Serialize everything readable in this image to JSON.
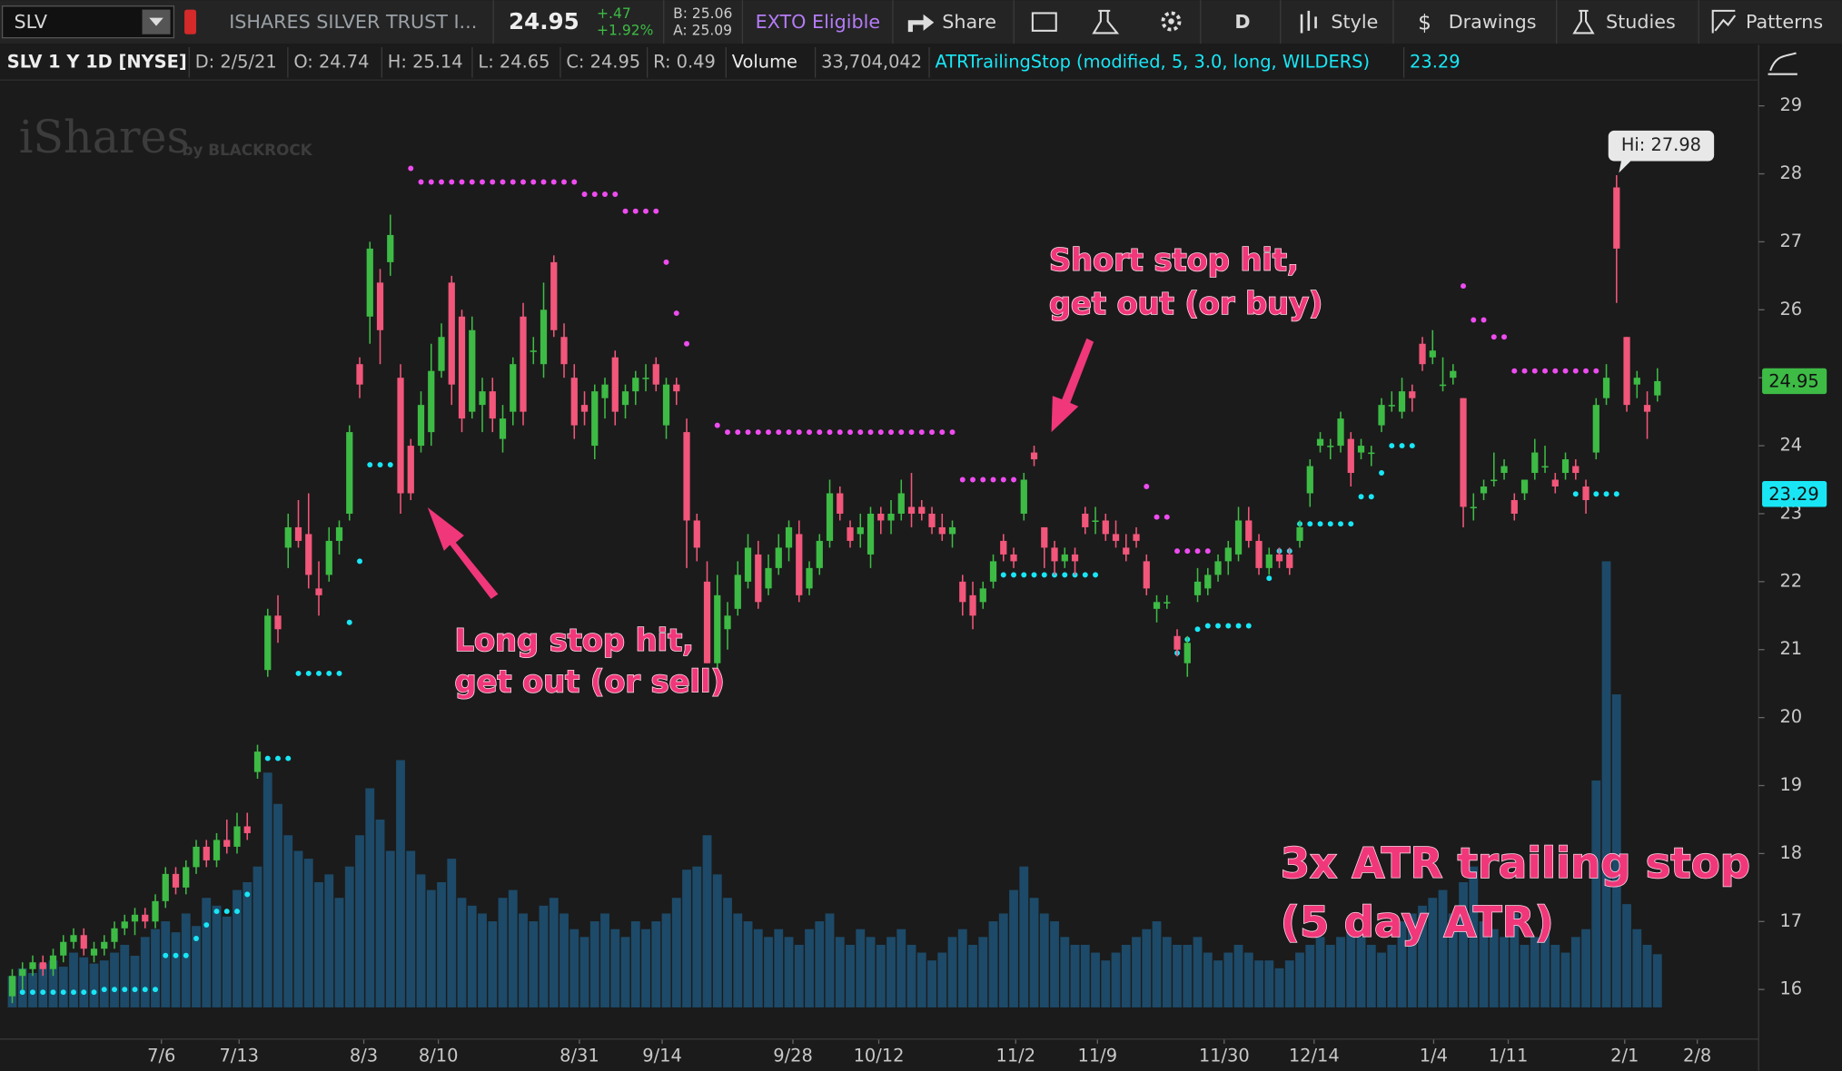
{
  "toolbar": {
    "symbol": "SLV",
    "description": "ISHARES SILVER TRUST I...",
    "last": 24.95,
    "change": "+.47",
    "change_pct": "+1.92%",
    "bid": "B: 25.06",
    "ask": "A: 25.09",
    "exto": "EXTO Eligible",
    "share": "Share",
    "aggregation": "D",
    "style": "Style",
    "drawings": "Drawings",
    "studies": "Studies",
    "patterns": "Patterns"
  },
  "header": {
    "title": "SLV 1 Y 1D [NYSE]",
    "date": "D: 2/5/21",
    "open": "O: 24.74",
    "high": "H: 25.14",
    "low": "L: 24.65",
    "close": "C: 24.95",
    "range": "R: 0.49",
    "volume_label": "Volume",
    "volume": "33,704,042",
    "study": "ATRTrailingStop (modified, 5, 3.0, long, WILDERS)",
    "study_value": "23.29"
  },
  "watermark": [
    "iShares",
    "by BLACKROCK"
  ],
  "chart_data": {
    "type": "candlestick",
    "xlim": [
      -1.2,
      170.9
    ],
    "xticks": [
      {
        "value": 14.6,
        "label": "7/6"
      },
      {
        "value": 22.2,
        "label": "7/13"
      },
      {
        "value": 34.4,
        "label": "8/3"
      },
      {
        "value": 41.7,
        "label": "8/10"
      },
      {
        "value": 55.5,
        "label": "8/31"
      },
      {
        "value": 63.6,
        "label": "9/14"
      },
      {
        "value": 76.4,
        "label": "9/28"
      },
      {
        "value": 84.8,
        "label": "10/12"
      },
      {
        "value": 98.2,
        "label": "11/2"
      },
      {
        "value": 106.2,
        "label": "11/9"
      },
      {
        "value": 118.6,
        "label": "11/30"
      },
      {
        "value": 127.4,
        "label": "12/14"
      },
      {
        "value": 139.1,
        "label": "1/4"
      },
      {
        "value": 146.4,
        "label": "1/11"
      },
      {
        "value": 157.8,
        "label": "2/1"
      },
      {
        "value": 164.9,
        "label": "2/8"
      }
    ],
    "ylim": [
      15.27,
      29.38
    ],
    "yticks": [
      16,
      17,
      18,
      19,
      20,
      21,
      22,
      23,
      24,
      25,
      26,
      27,
      28,
      29
    ],
    "y2lim": [
      0,
      300
    ],
    "up_color": "#3dbb45",
    "down_color": "#f2567a",
    "volume_color": "#1d4a68",
    "long_stop_color": "#19e6f5",
    "short_stop_color": "#ee4cf0",
    "ohlc": [
      [
        15.9,
        16.3,
        15.8,
        16.2
      ],
      [
        16.2,
        16.4,
        16.0,
        16.3
      ],
      [
        16.3,
        16.5,
        16.2,
        16.4
      ],
      [
        16.4,
        16.5,
        16.2,
        16.3
      ],
      [
        16.3,
        16.6,
        16.2,
        16.5
      ],
      [
        16.5,
        16.8,
        16.4,
        16.7
      ],
      [
        16.7,
        16.9,
        16.6,
        16.8
      ],
      [
        16.8,
        16.9,
        16.5,
        16.6
      ],
      [
        16.5,
        16.7,
        16.4,
        16.6
      ],
      [
        16.6,
        16.8,
        16.5,
        16.7
      ],
      [
        16.7,
        17.0,
        16.6,
        16.9
      ],
      [
        16.9,
        17.1,
        16.8,
        17.0
      ],
      [
        17.0,
        17.2,
        16.8,
        17.1
      ],
      [
        17.1,
        17.2,
        16.9,
        17.0
      ],
      [
        17.0,
        17.4,
        16.9,
        17.3
      ],
      [
        17.3,
        17.8,
        17.2,
        17.7
      ],
      [
        17.7,
        17.8,
        17.4,
        17.5
      ],
      [
        17.5,
        17.9,
        17.4,
        17.8
      ],
      [
        17.8,
        18.2,
        17.7,
        18.1
      ],
      [
        18.1,
        18.2,
        17.8,
        17.9
      ],
      [
        17.9,
        18.3,
        17.8,
        18.2
      ],
      [
        18.2,
        18.5,
        18.0,
        18.1
      ],
      [
        18.1,
        18.6,
        18.0,
        18.4
      ],
      [
        18.4,
        18.6,
        18.2,
        18.3
      ],
      [
        19.2,
        19.6,
        19.1,
        19.5
      ],
      [
        20.7,
        21.6,
        20.6,
        21.5
      ],
      [
        21.5,
        21.8,
        21.1,
        21.3
      ],
      [
        22.5,
        23.0,
        22.2,
        22.8
      ],
      [
        22.8,
        23.2,
        22.5,
        22.6
      ],
      [
        22.7,
        23.3,
        21.9,
        22.1
      ],
      [
        21.9,
        22.3,
        21.5,
        21.8
      ],
      [
        22.1,
        22.8,
        22.0,
        22.6
      ],
      [
        22.6,
        22.9,
        22.4,
        22.8
      ],
      [
        23.0,
        24.3,
        22.9,
        24.2
      ],
      [
        25.2,
        25.3,
        24.7,
        24.9
      ],
      [
        25.9,
        27.0,
        25.5,
        26.9
      ],
      [
        26.4,
        26.6,
        25.2,
        25.7
      ],
      [
        26.7,
        27.4,
        26.5,
        27.1
      ],
      [
        25.0,
        25.2,
        23.0,
        23.3
      ],
      [
        24.0,
        24.1,
        23.2,
        23.3
      ],
      [
        24.0,
        24.8,
        23.9,
        24.6
      ],
      [
        24.2,
        25.5,
        24.0,
        25.1
      ],
      [
        25.1,
        25.8,
        25.0,
        25.6
      ],
      [
        26.4,
        26.5,
        24.6,
        24.9
      ],
      [
        25.9,
        26.0,
        24.2,
        24.4
      ],
      [
        24.5,
        25.9,
        24.4,
        25.7
      ],
      [
        24.6,
        25.0,
        24.2,
        24.8
      ],
      [
        24.8,
        25.0,
        24.2,
        24.4
      ],
      [
        24.1,
        24.6,
        23.9,
        24.4
      ],
      [
        24.5,
        25.3,
        24.3,
        25.2
      ],
      [
        25.9,
        26.1,
        24.3,
        24.5
      ],
      [
        25.4,
        25.6,
        25.2,
        25.4
      ],
      [
        25.2,
        26.4,
        25.0,
        26.0
      ],
      [
        26.7,
        26.8,
        25.6,
        25.7
      ],
      [
        25.6,
        25.8,
        25.0,
        25.2
      ],
      [
        25.0,
        25.2,
        24.1,
        24.3
      ],
      [
        24.6,
        24.8,
        24.3,
        24.5
      ],
      [
        24.0,
        24.9,
        23.8,
        24.8
      ],
      [
        24.7,
        25.0,
        24.4,
        24.9
      ],
      [
        25.3,
        25.4,
        24.3,
        24.5
      ],
      [
        24.6,
        24.9,
        24.4,
        24.8
      ],
      [
        24.8,
        25.1,
        24.6,
        25.0
      ],
      [
        25.0,
        25.2,
        24.8,
        25.0
      ],
      [
        25.2,
        25.3,
        24.8,
        24.9
      ],
      [
        24.3,
        25.0,
        24.1,
        24.9
      ],
      [
        24.9,
        25.0,
        24.6,
        24.8
      ],
      [
        24.2,
        24.4,
        22.2,
        22.9
      ],
      [
        22.9,
        23.0,
        22.3,
        22.5
      ],
      [
        22.0,
        22.3,
        20.8,
        20.8
      ],
      [
        20.8,
        22.1,
        20.6,
        21.8
      ],
      [
        21.3,
        21.7,
        21.0,
        21.5
      ],
      [
        21.6,
        22.3,
        21.5,
        22.1
      ],
      [
        22.0,
        22.7,
        21.9,
        22.5
      ],
      [
        22.4,
        22.6,
        21.6,
        21.7
      ],
      [
        21.9,
        22.4,
        21.8,
        22.2
      ],
      [
        22.2,
        22.7,
        22.1,
        22.5
      ],
      [
        22.5,
        22.9,
        22.3,
        22.8
      ],
      [
        22.7,
        22.9,
        21.7,
        21.8
      ],
      [
        21.9,
        22.3,
        21.8,
        22.2
      ],
      [
        22.2,
        22.7,
        22.1,
        22.6
      ],
      [
        22.6,
        23.5,
        22.5,
        23.3
      ],
      [
        23.3,
        23.4,
        22.9,
        23.0
      ],
      [
        22.8,
        22.9,
        22.5,
        22.6
      ],
      [
        22.7,
        23.0,
        22.5,
        22.8
      ],
      [
        22.4,
        23.1,
        22.2,
        23.0
      ],
      [
        23.0,
        23.1,
        22.7,
        22.9
      ],
      [
        22.9,
        23.2,
        22.7,
        23.0
      ],
      [
        23.0,
        23.5,
        22.9,
        23.3
      ],
      [
        23.1,
        23.6,
        22.8,
        23.0
      ],
      [
        23.1,
        23.2,
        22.9,
        23.0
      ],
      [
        23.0,
        23.1,
        22.7,
        22.8
      ],
      [
        22.8,
        23.0,
        22.6,
        22.7
      ],
      [
        22.7,
        22.9,
        22.5,
        22.8
      ],
      [
        22.0,
        22.1,
        21.5,
        21.7
      ],
      [
        21.8,
        22.0,
        21.3,
        21.5
      ],
      [
        21.7,
        22.0,
        21.6,
        21.9
      ],
      [
        22.0,
        22.4,
        21.9,
        22.3
      ],
      [
        22.6,
        22.7,
        22.3,
        22.4
      ],
      [
        22.4,
        22.5,
        22.2,
        22.3
      ],
      [
        23.0,
        23.6,
        22.9,
        23.5
      ],
      [
        23.9,
        24.0,
        23.7,
        23.8
      ],
      [
        22.8,
        22.8,
        22.2,
        22.5
      ],
      [
        22.5,
        22.6,
        22.1,
        22.3
      ],
      [
        22.3,
        22.5,
        22.2,
        22.4
      ],
      [
        22.4,
        22.5,
        22.1,
        22.3
      ],
      [
        23.0,
        23.1,
        22.7,
        22.8
      ],
      [
        22.9,
        23.1,
        22.7,
        22.9
      ],
      [
        22.9,
        23.0,
        22.6,
        22.7
      ],
      [
        22.7,
        22.9,
        22.5,
        22.6
      ],
      [
        22.5,
        22.7,
        22.3,
        22.4
      ],
      [
        22.7,
        22.8,
        22.5,
        22.6
      ],
      [
        22.3,
        22.4,
        21.8,
        21.9
      ],
      [
        21.6,
        21.8,
        21.4,
        21.7
      ],
      [
        21.7,
        21.8,
        21.6,
        21.7
      ],
      [
        21.2,
        21.3,
        20.9,
        21.0
      ],
      [
        20.8,
        21.2,
        20.6,
        21.1
      ],
      [
        21.8,
        22.2,
        21.7,
        22.0
      ],
      [
        21.9,
        22.2,
        21.8,
        22.1
      ],
      [
        22.1,
        22.4,
        22.0,
        22.3
      ],
      [
        22.3,
        22.6,
        22.1,
        22.5
      ],
      [
        22.4,
        23.1,
        22.3,
        22.9
      ],
      [
        22.9,
        23.1,
        22.5,
        22.6
      ],
      [
        22.6,
        22.7,
        22.1,
        22.2
      ],
      [
        22.2,
        22.5,
        22.1,
        22.4
      ],
      [
        22.4,
        22.5,
        22.2,
        22.3
      ],
      [
        22.4,
        22.5,
        22.1,
        22.2
      ],
      [
        22.6,
        22.9,
        22.5,
        22.8
      ],
      [
        23.3,
        23.8,
        23.1,
        23.7
      ],
      [
        24.0,
        24.2,
        23.9,
        24.1
      ],
      [
        24.0,
        24.1,
        23.8,
        24.0
      ],
      [
        24.0,
        24.5,
        23.9,
        24.4
      ],
      [
        24.1,
        24.2,
        23.4,
        23.6
      ],
      [
        23.9,
        24.1,
        23.8,
        24.0
      ],
      [
        23.9,
        24.0,
        23.7,
        23.9
      ],
      [
        24.3,
        24.7,
        24.2,
        24.6
      ],
      [
        24.6,
        24.8,
        24.5,
        24.6
      ],
      [
        24.5,
        25.0,
        24.4,
        24.8
      ],
      [
        24.8,
        24.9,
        24.5,
        24.7
      ],
      [
        25.5,
        25.6,
        25.1,
        25.2
      ],
      [
        25.3,
        25.7,
        25.2,
        25.4
      ],
      [
        24.9,
        25.3,
        24.8,
        24.9
      ],
      [
        25.0,
        25.2,
        24.9,
        25.1
      ],
      [
        24.7,
        24.7,
        22.8,
        23.1
      ],
      [
        23.1,
        23.3,
        22.9,
        23.1
      ],
      [
        23.3,
        23.5,
        23.2,
        23.4
      ],
      [
        23.5,
        23.9,
        23.4,
        23.5
      ],
      [
        23.6,
        23.8,
        23.5,
        23.7
      ],
      [
        23.2,
        23.3,
        22.9,
        23.0
      ],
      [
        23.3,
        23.5,
        23.2,
        23.5
      ],
      [
        23.6,
        24.1,
        23.5,
        23.9
      ],
      [
        23.7,
        24.0,
        23.6,
        23.7
      ],
      [
        23.5,
        23.6,
        23.3,
        23.4
      ],
      [
        23.6,
        23.9,
        23.5,
        23.8
      ],
      [
        23.7,
        23.8,
        23.5,
        23.6
      ],
      [
        23.4,
        23.5,
        23.0,
        23.2
      ],
      [
        23.9,
        24.7,
        23.8,
        24.6
      ],
      [
        24.7,
        25.2,
        24.6,
        25.0
      ],
      [
        27.8,
        27.98,
        26.1,
        26.9
      ],
      [
        25.6,
        25.6,
        24.5,
        24.6
      ],
      [
        24.9,
        25.1,
        24.7,
        25.0
      ],
      [
        24.6,
        24.8,
        24.1,
        24.5
      ],
      [
        24.74,
        25.14,
        24.65,
        24.95
      ]
    ],
    "volume": [
      20,
      25,
      22,
      28,
      30,
      26,
      35,
      32,
      28,
      30,
      35,
      40,
      33,
      45,
      50,
      55,
      48,
      60,
      52,
      70,
      65,
      58,
      75,
      80,
      90,
      150,
      130,
      110,
      100,
      95,
      80,
      85,
      70,
      90,
      110,
      140,
      120,
      100,
      158,
      100,
      85,
      75,
      80,
      95,
      70,
      65,
      60,
      55,
      70,
      75,
      60,
      55,
      65,
      70,
      60,
      50,
      45,
      55,
      60,
      50,
      45,
      55,
      50,
      55,
      60,
      70,
      88,
      90,
      110,
      85,
      70,
      60,
      55,
      50,
      45,
      50,
      45,
      40,
      50,
      55,
      60,
      45,
      40,
      50,
      45,
      40,
      45,
      50,
      40,
      35,
      30,
      35,
      45,
      50,
      40,
      45,
      55,
      60,
      75,
      90,
      70,
      60,
      55,
      45,
      40,
      40,
      35,
      30,
      35,
      40,
      45,
      50,
      55,
      45,
      40,
      40,
      45,
      35,
      30,
      35,
      40,
      35,
      30,
      30,
      25,
      30,
      35,
      40,
      45,
      40,
      45,
      50,
      45,
      40,
      35,
      40,
      55,
      60,
      65,
      70,
      75,
      60,
      80,
      90,
      55,
      50,
      45,
      60,
      40,
      45,
      50,
      40,
      35,
      45,
      50,
      145,
      285,
      200,
      66,
      50,
      40,
      34
    ],
    "long_stop": [
      15.96,
      15.96,
      15.96,
      15.96,
      15.96,
      15.96,
      15.96,
      15.96,
      15.96,
      16.0,
      16.0,
      16.0,
      16.0,
      16.0,
      16.0,
      16.5,
      16.5,
      16.5,
      16.75,
      16.95,
      17.15,
      17.15,
      17.15,
      17.4,
      null,
      19.4,
      19.4,
      19.4,
      20.65,
      20.65,
      20.65,
      20.65,
      20.65,
      21.4,
      22.3,
      23.72,
      23.72,
      23.72,
      null,
      null,
      null,
      null,
      null,
      null,
      null,
      null,
      null,
      null,
      null,
      null,
      null,
      null,
      null,
      null,
      null,
      null,
      null,
      null,
      null,
      null,
      null,
      null,
      null,
      null,
      null,
      null,
      null,
      null,
      null,
      null,
      null,
      null,
      null,
      null,
      null,
      null,
      null,
      null,
      null,
      null,
      null,
      null,
      null,
      null,
      null,
      null,
      null,
      null,
      null,
      null,
      null,
      null,
      null,
      null,
      null,
      null,
      null,
      22.1,
      22.1,
      22.1,
      22.1,
      22.1,
      22.1,
      22.1,
      22.1,
      22.1,
      22.1,
      null,
      null,
      null,
      null,
      null,
      null,
      null,
      20.95,
      21.15,
      21.3,
      21.35,
      21.35,
      21.35,
      21.35,
      21.35,
      null,
      22.05,
      22.45,
      22.45,
      22.85,
      22.85,
      22.85,
      22.85,
      22.85,
      22.85,
      23.25,
      23.25,
      23.6,
      24.0,
      24.0,
      24.0,
      null,
      null,
      null,
      null,
      null,
      null,
      null,
      null,
      null,
      null,
      null,
      null,
      null,
      null,
      null,
      23.29,
      23.29,
      23.29,
      23.29,
      23.29
    ],
    "short_stop": [
      null,
      null,
      null,
      null,
      null,
      null,
      null,
      null,
      null,
      null,
      null,
      null,
      null,
      null,
      null,
      null,
      null,
      null,
      null,
      null,
      null,
      null,
      null,
      null,
      null,
      null,
      null,
      null,
      null,
      null,
      null,
      null,
      null,
      null,
      null,
      null,
      null,
      null,
      null,
      28.08,
      27.88,
      27.88,
      27.88,
      27.88,
      27.88,
      27.88,
      27.88,
      27.88,
      27.88,
      27.88,
      27.88,
      27.88,
      27.88,
      27.88,
      27.88,
      27.88,
      27.7,
      27.7,
      27.7,
      27.7,
      27.45,
      27.45,
      27.45,
      27.45,
      26.7,
      25.95,
      25.5,
      null,
      null,
      24.3,
      24.2,
      24.2,
      24.2,
      24.2,
      24.2,
      24.2,
      24.2,
      24.2,
      24.2,
      24.2,
      24.2,
      24.2,
      24.2,
      24.2,
      24.2,
      24.2,
      24.2,
      24.2,
      24.2,
      24.2,
      24.2,
      24.2,
      24.2,
      23.5,
      23.5,
      23.5,
      23.5,
      23.5,
      23.5,
      null,
      null,
      null,
      null,
      null,
      null,
      null,
      null,
      null,
      null,
      null,
      null,
      23.4,
      22.95,
      22.95,
      22.45,
      22.45,
      22.45,
      22.45,
      null,
      null,
      null,
      null,
      null,
      null,
      null,
      null,
      null,
      null,
      null,
      null,
      null,
      null,
      null,
      null,
      null,
      null,
      null,
      null,
      null,
      null,
      null,
      null,
      26.35,
      25.85,
      25.85,
      25.6,
      25.6,
      25.1,
      25.1,
      25.1,
      25.1,
      25.1,
      25.1,
      25.1,
      25.1,
      25.1,
      null,
      null,
      null,
      null,
      null,
      null
    ],
    "hi_label": "Hi: 27.98",
    "hi_value": 27.98,
    "last_price": 24.95,
    "stop_price": 23.29,
    "annotations": [
      [
        "Long stop hit,",
        "get out (or sell)"
      ],
      [
        "Short stop hit,",
        "get out (or buy)"
      ],
      [
        "3x ATR trailing stop",
        "(5 day ATR)"
      ]
    ]
  }
}
